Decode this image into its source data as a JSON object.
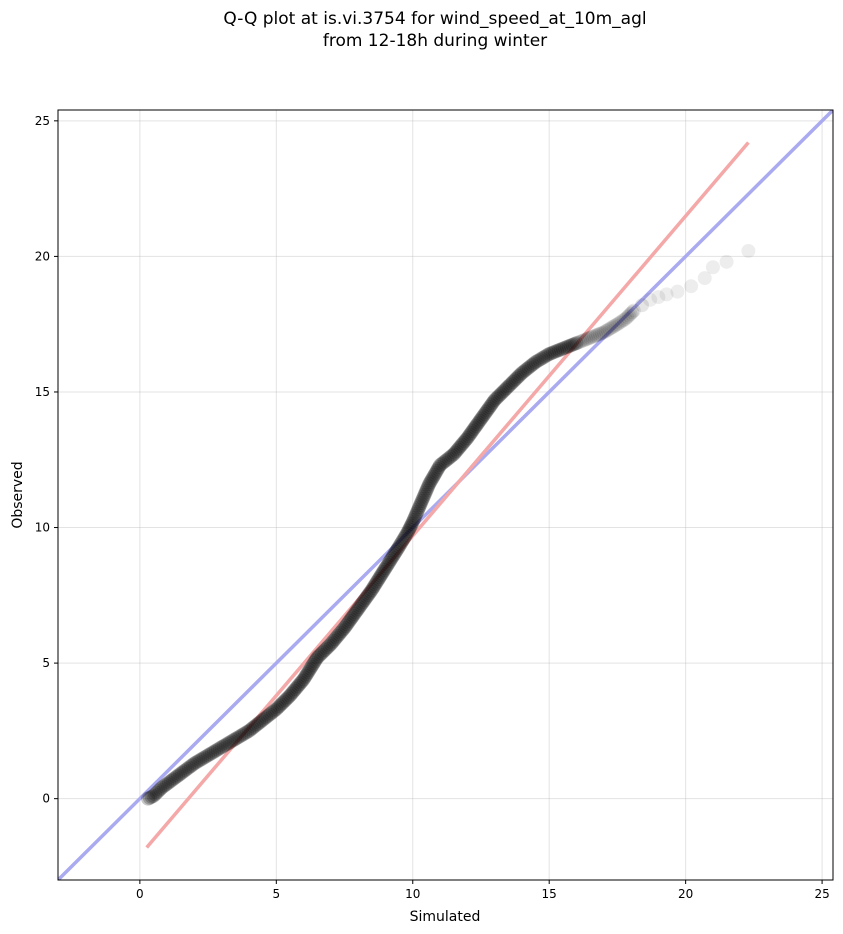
{
  "chart_data": {
    "type": "scatter",
    "title_lines": [
      "Q-Q plot at is.vi.3754 for wind_speed_at_10m_agl",
      "from 12-18h during winter"
    ],
    "xlabel": "Simulated",
    "ylabel": "Observed",
    "xlim": [
      -3,
      25.4
    ],
    "ylim": [
      -3,
      25.4
    ],
    "xticks": [
      0,
      5,
      10,
      15,
      20,
      25
    ],
    "yticks": [
      0,
      5,
      10,
      15,
      20,
      25
    ],
    "grid": true,
    "reference_line": {
      "name": "1:1",
      "color": "#aaaaf0",
      "x": [
        -3,
        25.4
      ],
      "y": [
        -3,
        25.4
      ]
    },
    "fit_line": {
      "color": "#f4a8a8",
      "x": [
        0.25,
        22.3
      ],
      "y": [
        -1.8,
        24.2
      ]
    },
    "marker_color": "#000000",
    "quantiles": {
      "x": [
        0.3,
        0.5,
        0.8,
        1.2,
        1.6,
        2.0,
        2.5,
        3.0,
        3.5,
        4.0,
        4.5,
        5.0,
        5.5,
        6.0,
        6.5,
        7.0,
        7.5,
        8.0,
        8.5,
        9.0,
        9.5,
        9.8,
        10.0,
        10.3,
        10.6,
        11.0,
        11.5,
        12.0,
        12.5,
        13.0,
        13.5,
        14.0,
        14.5,
        15.0,
        15.5,
        16.0,
        16.5,
        17.0,
        17.5,
        17.8,
        18.1,
        18.4,
        18.7,
        19.0,
        19.3,
        19.7,
        20.2,
        20.7,
        21.0,
        21.5,
        22.3
      ],
      "y": [
        0.0,
        0.1,
        0.4,
        0.7,
        1.0,
        1.3,
        1.6,
        1.9,
        2.2,
        2.5,
        2.9,
        3.3,
        3.8,
        4.4,
        5.2,
        5.7,
        6.3,
        7.0,
        7.7,
        8.5,
        9.3,
        9.8,
        10.2,
        10.9,
        11.6,
        12.3,
        12.7,
        13.3,
        14.0,
        14.7,
        15.2,
        15.7,
        16.1,
        16.4,
        16.6,
        16.8,
        17.0,
        17.2,
        17.5,
        17.7,
        18.0,
        18.2,
        18.4,
        18.5,
        18.6,
        18.7,
        18.9,
        19.2,
        19.6,
        19.8,
        20.2
      ]
    }
  }
}
